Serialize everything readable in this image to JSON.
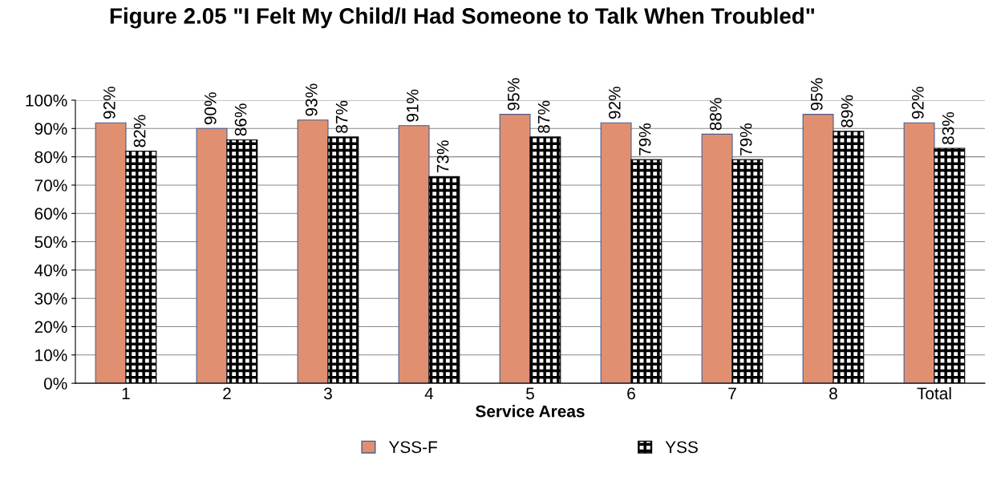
{
  "chart_data": {
    "type": "bar",
    "title": "Figure 2.05 \"I Felt My Child/I Had Someone to Talk When Troubled\"",
    "xlabel": "Service Areas",
    "categories": [
      "1",
      "2",
      "3",
      "4",
      "5",
      "6",
      "7",
      "8",
      "Total"
    ],
    "series": [
      {
        "name": "YSS-F",
        "color": "#e09070",
        "values": [
          92,
          90,
          93,
          91,
          95,
          92,
          88,
          95,
          92
        ],
        "value_labels": [
          "92%",
          "90%",
          "93%",
          "91%",
          "95%",
          "92%",
          "88%",
          "95%",
          "92%"
        ]
      },
      {
        "name": "YSS",
        "color": "#000000",
        "values": [
          82,
          86,
          87,
          73,
          87,
          79,
          79,
          89,
          83
        ],
        "value_labels": [
          "82%",
          "86%",
          "87%",
          "73%",
          "87%",
          "79%",
          "79%",
          "89%",
          "83%"
        ]
      }
    ],
    "ylim": [
      0,
      100
    ],
    "yticks": [
      {
        "value": 0,
        "label": "0%"
      },
      {
        "value": 10,
        "label": "10%"
      },
      {
        "value": 20,
        "label": "20%"
      },
      {
        "value": 30,
        "label": "30%"
      },
      {
        "value": 40,
        "label": "40%"
      },
      {
        "value": 50,
        "label": "50%"
      },
      {
        "value": 60,
        "label": "60%"
      },
      {
        "value": 70,
        "label": "70%"
      },
      {
        "value": 80,
        "label": "80%"
      },
      {
        "value": 90,
        "label": "90%"
      },
      {
        "value": 100,
        "label": "100%"
      }
    ],
    "grid": "y",
    "legend": "bottom"
  }
}
